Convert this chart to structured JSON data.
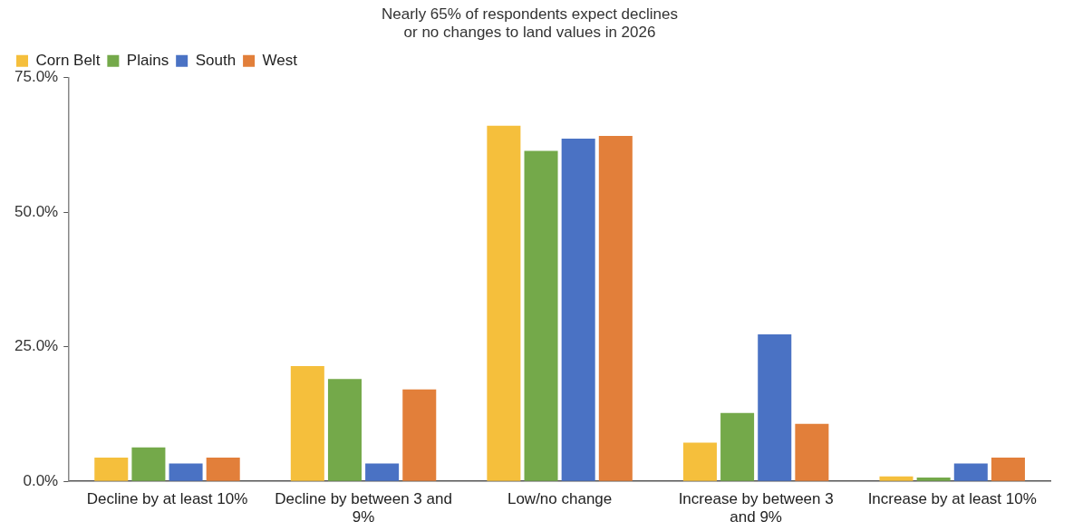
{
  "chart_data": {
    "type": "bar",
    "title": [
      "Nearly 65% of respondents expect declines",
      "or no changes to land values in 2026"
    ],
    "categories": [
      "Decline by at least 10%",
      "Decline by between 3 and 9%",
      "Low/no change",
      "Increase by between 3 and 9%",
      "Increase by at least 10%"
    ],
    "series": [
      {
        "name": "Corn Belt",
        "color": "#f5bf3c",
        "values": [
          4.4,
          21.4,
          66.1,
          7.2,
          0.9
        ]
      },
      {
        "name": "Plains",
        "color": "#74a94a",
        "values": [
          6.3,
          19.0,
          61.4,
          12.7,
          0.7
        ]
      },
      {
        "name": "South",
        "color": "#4a72c4",
        "values": [
          3.3,
          3.3,
          63.7,
          27.3,
          3.3
        ]
      },
      {
        "name": "West",
        "color": "#e27f3a",
        "values": [
          4.4,
          17.1,
          64.2,
          10.7,
          4.4
        ]
      }
    ],
    "ylim": [
      0,
      75
    ],
    "yticks": [
      {
        "value": 0,
        "label": "0.0%"
      },
      {
        "value": 25,
        "label": "25.0%"
      },
      {
        "value": 50,
        "label": "50.0%"
      },
      {
        "value": 75,
        "label": "75.0%"
      }
    ],
    "grid": false,
    "legend": "top left"
  }
}
